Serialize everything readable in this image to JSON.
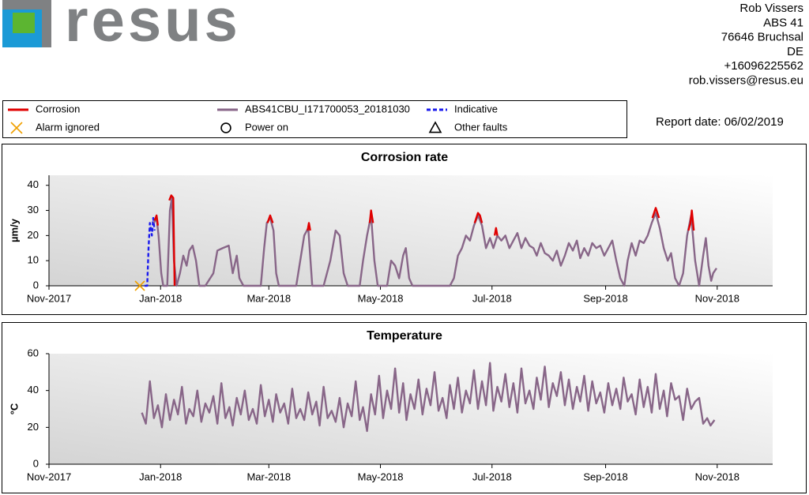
{
  "header": {
    "logo": "resus",
    "address": [
      "Rob Vissers",
      "ABS 41",
      "76646 Bruchsal",
      "DE",
      "+16096225562",
      "rob.vissers@resus.eu"
    ]
  },
  "report_date": "Report date: 06/02/2019",
  "chart_data": [
    {
      "type": "line",
      "title": "Corrosion rate",
      "ylabel": "µm/y",
      "legend": "top",
      "xlim": [
        2017.833,
        2018.916
      ],
      "xticks": [
        {
          "value": 2017.833,
          "label": "Nov-2017"
        },
        {
          "value": 2018.0,
          "label": "Jan-2018"
        },
        {
          "value": 2018.162,
          "label": "Mar-2018"
        },
        {
          "value": 2018.329,
          "label": "May-2018"
        },
        {
          "value": 2018.496,
          "label": "Jul-2018"
        },
        {
          "value": 2018.666,
          "label": "Sep-2018"
        },
        {
          "value": 2018.833,
          "label": "Nov-2018"
        }
      ],
      "ylim": [
        0,
        44
      ],
      "yticks": [
        0,
        10,
        20,
        30,
        40
      ],
      "series": [
        {
          "name": "Corrosion",
          "color": "#e00000",
          "style": "solid",
          "x": [
            2017.991,
            2017.994,
            2017.996,
            null,
            2018.013,
            2018.016,
            2018.019,
            2018.021,
            null,
            2018.16,
            2018.164,
            2018.168,
            null,
            2018.22,
            2018.222,
            2018.224,
            null,
            2018.313,
            2018.315,
            2018.318,
            null,
            2018.47,
            2018.475,
            2018.478,
            2018.481,
            null,
            2018.5,
            2018.502,
            2018.504,
            null,
            2018.736,
            2018.741,
            2018.746,
            null,
            2018.79,
            2018.793,
            2018.795,
            2018.798
          ],
          "values": [
            26,
            28,
            24,
            null,
            34,
            36,
            35,
            0,
            null,
            25,
            28,
            25,
            null,
            22,
            25,
            22,
            null,
            25,
            30,
            25,
            null,
            25,
            29,
            28,
            25,
            null,
            20,
            23,
            20,
            null,
            27,
            31,
            27,
            null,
            22,
            25,
            30,
            22
          ]
        },
        {
          "name": "ABS41CBU_I171700053_20181030",
          "color": "#886688",
          "style": "solid",
          "x": [
            2017.99,
            2017.994,
            2017.997,
            2018.001,
            2018.004,
            2018.01,
            2018.014,
            2018.017,
            2018.02,
            2018.024,
            2018.029,
            2018.034,
            2018.039,
            2018.043,
            2018.048,
            2018.053,
            2018.058,
            2018.067,
            2018.079,
            2018.085,
            2018.093,
            2018.102,
            2018.108,
            2018.114,
            2018.118,
            2018.124,
            2018.15,
            2018.155,
            2018.159,
            2018.164,
            2018.169,
            2018.173,
            2018.177,
            2018.203,
            2018.209,
            2018.215,
            2018.221,
            2018.227,
            2018.244,
            2018.254,
            2018.262,
            2018.268,
            2018.274,
            2018.28,
            2018.298,
            2018.303,
            2018.309,
            2018.315,
            2018.32,
            2018.325,
            2018.339,
            2018.345,
            2018.351,
            2018.357,
            2018.363,
            2018.367,
            2018.372,
            2018.377,
            2018.433,
            2018.439,
            2018.445,
            2018.451,
            2018.457,
            2018.463,
            2018.469,
            2018.475,
            2018.481,
            2018.487,
            2018.493,
            2018.498,
            2018.504,
            2018.51,
            2018.516,
            2018.522,
            2018.528,
            2018.534,
            2018.54,
            2018.546,
            2018.552,
            2018.558,
            2018.563,
            2018.569,
            2018.575,
            2018.581,
            2018.587,
            2018.593,
            2018.599,
            2018.605,
            2018.611,
            2018.617,
            2018.623,
            2018.628,
            2018.634,
            2018.64,
            2018.646,
            2018.652,
            2018.658,
            2018.664,
            2018.67,
            2018.676,
            2018.682,
            2018.688,
            2018.694,
            2018.699,
            2018.705,
            2018.711,
            2018.717,
            2018.723,
            2018.729,
            2018.735,
            2018.741,
            2018.747,
            2018.753,
            2018.759,
            2018.764,
            2018.77,
            2018.776,
            2018.782,
            2018.788,
            2018.794,
            2018.8,
            2018.806,
            2018.812,
            2018.816,
            2018.82,
            2018.824,
            2018.827,
            2018.832
          ],
          "values": [
            25,
            27,
            20,
            5,
            0,
            0,
            30,
            35,
            10,
            0,
            5,
            12,
            8,
            14,
            16,
            10,
            0,
            0,
            5,
            14,
            15,
            16,
            5,
            12,
            3,
            0,
            0,
            15,
            25,
            27,
            22,
            5,
            0,
            0,
            10,
            20,
            23,
            0,
            0,
            10,
            22,
            20,
            5,
            0,
            0,
            10,
            20,
            28,
            10,
            0,
            0,
            10,
            8,
            3,
            12,
            15,
            3,
            0,
            0,
            3,
            12,
            15,
            20,
            18,
            24,
            28,
            24,
            15,
            19,
            15,
            20,
            18,
            20,
            15,
            18,
            21,
            15,
            19,
            16,
            15,
            12,
            17,
            13,
            12,
            10,
            14,
            8,
            12,
            17,
            14,
            18,
            11,
            15,
            12,
            17,
            15,
            16,
            12,
            15,
            18,
            10,
            3,
            0,
            10,
            17,
            12,
            18,
            17,
            20,
            25,
            29,
            23,
            15,
            10,
            13,
            3,
            0,
            5,
            20,
            28,
            10,
            0,
            12,
            19,
            8,
            2,
            5,
            7
          ]
        },
        {
          "name": "Indicative",
          "color": "#1a1aee",
          "style": "dashed",
          "x": [
            2017.976,
            2017.98,
            2017.982,
            2017.984,
            2017.987,
            2017.989,
            2017.991
          ],
          "values": [
            0,
            0,
            15,
            25,
            20,
            27,
            22
          ]
        },
        {
          "name": "Alarm ignored",
          "color": "#f0a000",
          "marker": "x",
          "x": [
            2017.969
          ],
          "values": [
            0
          ]
        },
        {
          "name": "Power on",
          "color": "#000000",
          "marker": "circle",
          "x": [],
          "values": []
        },
        {
          "name": "Other faults",
          "color": "#000000",
          "marker": "triangle",
          "x": [],
          "values": []
        }
      ]
    },
    {
      "type": "line",
      "title": "Temperature",
      "ylabel": "°C",
      "xlim": [
        2017.833,
        2018.916
      ],
      "xticks": [
        {
          "value": 2017.833,
          "label": "Nov-2017"
        },
        {
          "value": 2018.0,
          "label": "Jan-2018"
        },
        {
          "value": 2018.162,
          "label": "Mar-2018"
        },
        {
          "value": 2018.329,
          "label": "May-2018"
        },
        {
          "value": 2018.496,
          "label": "Jul-2018"
        },
        {
          "value": 2018.666,
          "label": "Sep-2018"
        },
        {
          "value": 2018.833,
          "label": "Nov-2018"
        }
      ],
      "ylim": [
        0,
        60
      ],
      "yticks": [
        0,
        20,
        40,
        60
      ],
      "series": [
        {
          "color": "#886688",
          "style": "solid",
          "x": [
            2017.972,
            2017.978,
            2017.984,
            2017.99,
            2017.996,
            2018.002,
            2018.008,
            2018.014,
            2018.02,
            2018.026,
            2018.032,
            2018.038,
            2018.043,
            2018.049,
            2018.055,
            2018.061,
            2018.067,
            2018.073,
            2018.079,
            2018.085,
            2018.091,
            2018.097,
            2018.103,
            2018.108,
            2018.114,
            2018.12,
            2018.126,
            2018.132,
            2018.138,
            2018.144,
            2018.15,
            2018.156,
            2018.162,
            2018.168,
            2018.173,
            2018.179,
            2018.185,
            2018.191,
            2018.197,
            2018.203,
            2018.209,
            2018.215,
            2018.221,
            2018.227,
            2018.233,
            2018.238,
            2018.244,
            2018.25,
            2018.256,
            2018.262,
            2018.268,
            2018.274,
            2018.28,
            2018.286,
            2018.292,
            2018.298,
            2018.303,
            2018.309,
            2018.315,
            2018.321,
            2018.327,
            2018.333,
            2018.339,
            2018.345,
            2018.351,
            2018.357,
            2018.363,
            2018.368,
            2018.374,
            2018.38,
            2018.386,
            2018.392,
            2018.398,
            2018.404,
            2018.41,
            2018.416,
            2018.422,
            2018.428,
            2018.433,
            2018.439,
            2018.445,
            2018.451,
            2018.457,
            2018.463,
            2018.469,
            2018.475,
            2018.481,
            2018.487,
            2018.493,
            2018.498,
            2018.504,
            2018.51,
            2018.516,
            2018.522,
            2018.528,
            2018.534,
            2018.54,
            2018.546,
            2018.552,
            2018.558,
            2018.563,
            2018.569,
            2018.575,
            2018.581,
            2018.587,
            2018.593,
            2018.599,
            2018.605,
            2018.611,
            2018.617,
            2018.623,
            2018.628,
            2018.634,
            2018.64,
            2018.646,
            2018.652,
            2018.658,
            2018.664,
            2018.67,
            2018.676,
            2018.682,
            2018.688,
            2018.693,
            2018.699,
            2018.705,
            2018.711,
            2018.717,
            2018.723,
            2018.729,
            2018.735,
            2018.741,
            2018.747,
            2018.753,
            2018.758,
            2018.764,
            2018.77,
            2018.776,
            2018.782,
            2018.788,
            2018.794,
            2018.8,
            2018.806,
            2018.812,
            2018.818,
            2018.823,
            2018.829
          ],
          "values": [
            28,
            22,
            45,
            25,
            32,
            20,
            38,
            24,
            35,
            27,
            42,
            22,
            30,
            26,
            40,
            23,
            33,
            28,
            37,
            22,
            44,
            25,
            31,
            21,
            36,
            27,
            40,
            24,
            30,
            22,
            43,
            26,
            35,
            23,
            38,
            28,
            33,
            22,
            41,
            25,
            30,
            24,
            39,
            27,
            34,
            21,
            42,
            25,
            29,
            23,
            36,
            20,
            33,
            26,
            45,
            24,
            31,
            18,
            38,
            27,
            48,
            25,
            40,
            30,
            52,
            28,
            44,
            24,
            38,
            30,
            46,
            27,
            41,
            32,
            50,
            29,
            36,
            25,
            43,
            30,
            47,
            28,
            40,
            33,
            51,
            30,
            45,
            32,
            55,
            29,
            42,
            34,
            49,
            31,
            44,
            28,
            52,
            33,
            40,
            30,
            47,
            35,
            53,
            31,
            44,
            37,
            50,
            32,
            46,
            30,
            42,
            34,
            48,
            29,
            45,
            33,
            39,
            28,
            44,
            32,
            41,
            30,
            47,
            34,
            38,
            27,
            46,
            31,
            42,
            28,
            49,
            30,
            40,
            26,
            44,
            35,
            37,
            24,
            41,
            30,
            34,
            36,
            22,
            25,
            21,
            24
          ]
        }
      ]
    }
  ]
}
